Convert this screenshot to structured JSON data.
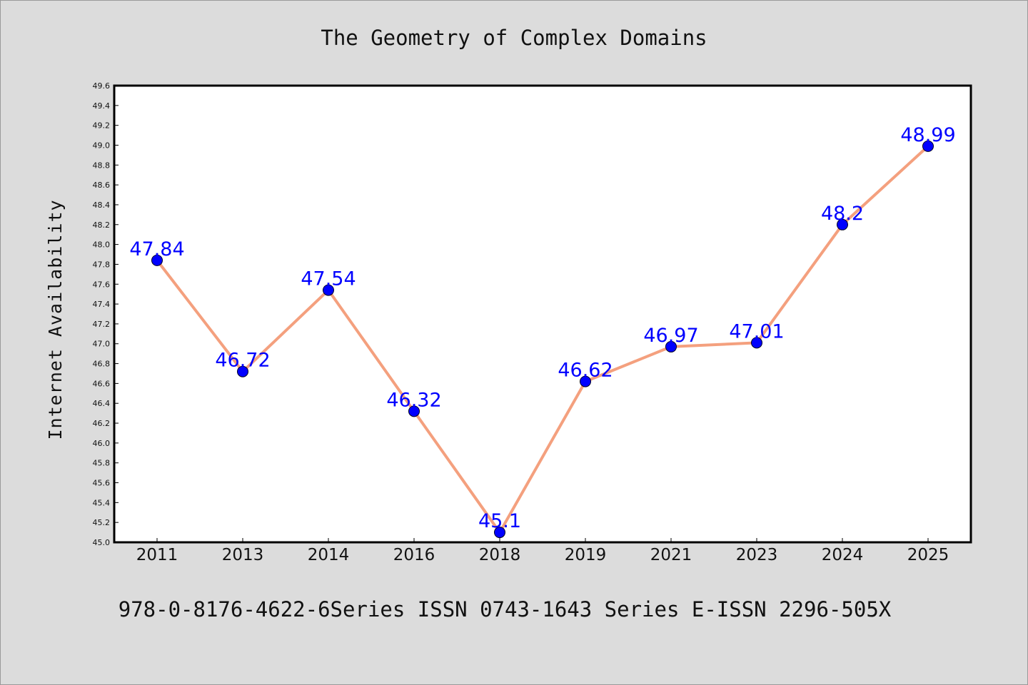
{
  "chart_data": {
    "type": "line",
    "title": "The Geometry of Complex Domains",
    "footer": "978-0-8176-4622-6Series ISSN 0743-1643 Series E-ISSN 2296-505X",
    "xlabel": "",
    "ylabel": "Internet Availability",
    "categories": [
      "2011",
      "2013",
      "2014",
      "2016",
      "2018",
      "2019",
      "2021",
      "2023",
      "2024",
      "2025"
    ],
    "values": [
      47.84,
      46.72,
      47.54,
      46.32,
      45.1,
      46.62,
      46.97,
      47.01,
      48.2,
      48.99
    ],
    "data_labels": [
      "47.84",
      "46.72",
      "47.54",
      "46.32",
      "45.1",
      "46.62",
      "46.97",
      "47.01",
      "48.2",
      "48.99"
    ],
    "ylim": [
      45.0,
      49.6
    ],
    "yticks": [
      "45.0",
      "45.2",
      "45.4",
      "45.6",
      "45.8",
      "46.0",
      "46.2",
      "46.4",
      "46.6",
      "46.8",
      "47.0",
      "47.2",
      "47.4",
      "47.6",
      "47.8",
      "48.0",
      "48.2",
      "48.4",
      "48.6",
      "48.8",
      "49.0",
      "49.2",
      "49.4",
      "49.6"
    ],
    "grid": false,
    "colors": {
      "line": "#f4a07e",
      "marker": "#0000ff",
      "label": "#0000ff",
      "background": "#dcdcdc",
      "plot_background": "#ffffff"
    }
  }
}
